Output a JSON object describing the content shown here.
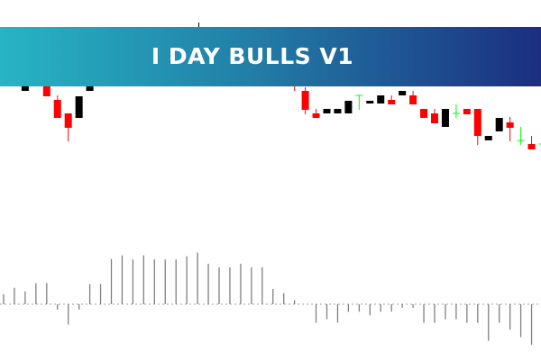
{
  "banner": {
    "title": "I DAY BULLS V1"
  },
  "colors": {
    "bull": "#000000",
    "bear": "#ff0000",
    "doji": "#00ff00",
    "histogram": "#808080",
    "zero_line": "#a0a0a0",
    "banner_start": "#27b4c4",
    "banner_end": "#1c2e80"
  },
  "chart_data": [
    {
      "type": "candlestick",
      "title": "",
      "candles": [
        {
          "i": 2,
          "o": 99,
          "h": 108,
          "l": 99,
          "c": 107
        },
        {
          "i": 4,
          "o": 110,
          "h": 112,
          "l": 93,
          "c": 93
        },
        {
          "i": 5,
          "o": 89,
          "h": 94,
          "l": 69,
          "c": 69
        },
        {
          "i": 6,
          "o": 74,
          "h": 74,
          "l": 43,
          "c": 58
        },
        {
          "i": 7,
          "o": 69,
          "h": 93,
          "l": 69,
          "c": 93
        },
        {
          "i": 8,
          "o": 99,
          "h": 108,
          "l": 99,
          "c": 106
        },
        {
          "i": 27,
          "o": 108,
          "h": 110,
          "l": 99,
          "c": 104
        },
        {
          "i": 28,
          "o": 99,
          "h": 103,
          "l": 73,
          "c": 78
        },
        {
          "i": 29,
          "o": 74,
          "h": 79,
          "l": 69,
          "c": 69
        },
        {
          "i": 30,
          "o": 74,
          "h": 79,
          "l": 74,
          "c": 79
        },
        {
          "i": 31,
          "o": 74,
          "h": 79,
          "l": 74,
          "c": 79
        },
        {
          "i": 32,
          "o": 74,
          "h": 88,
          "l": 74,
          "c": 88
        },
        {
          "i": 33,
          "o": 94,
          "h": 94,
          "l": 78,
          "c": 94
        },
        {
          "i": 34,
          "o": 85,
          "h": 88,
          "l": 85,
          "c": 88
        },
        {
          "i": 35,
          "o": 85,
          "h": 94,
          "l": 85,
          "c": 94
        },
        {
          "i": 36,
          "o": 89,
          "h": 94,
          "l": 84,
          "c": 84
        },
        {
          "i": 37,
          "o": 94,
          "h": 99,
          "l": 94,
          "c": 99
        },
        {
          "i": 38,
          "o": 94,
          "h": 99,
          "l": 84,
          "c": 84
        },
        {
          "i": 39,
          "o": 79,
          "h": 79,
          "l": 69,
          "c": 69
        },
        {
          "i": 40,
          "o": 74,
          "h": 79,
          "l": 63,
          "c": 63
        },
        {
          "i": 41,
          "o": 59,
          "h": 79,
          "l": 59,
          "c": 79
        },
        {
          "i": 42,
          "o": 74,
          "h": 84,
          "l": 69,
          "c": 74
        },
        {
          "i": 43,
          "o": 79,
          "h": 79,
          "l": 73,
          "c": 73
        },
        {
          "i": 44,
          "o": 79,
          "h": 79,
          "l": 39,
          "c": 49
        },
        {
          "i": 45,
          "o": 44,
          "h": 49,
          "l": 44,
          "c": 49
        },
        {
          "i": 46,
          "o": 54,
          "h": 69,
          "l": 54,
          "c": 69
        },
        {
          "i": 47,
          "o": 64,
          "h": 70,
          "l": 43,
          "c": 58
        },
        {
          "i": 48,
          "o": 44,
          "h": 59,
          "l": 39,
          "c": 44
        },
        {
          "i": 49,
          "o": 40,
          "h": 49,
          "l": 34,
          "c": 34
        },
        {
          "i": 50,
          "o": 40,
          "h": 40,
          "l": 40,
          "c": 40
        }
      ]
    },
    {
      "type": "bar",
      "title": "",
      "baseline": 0,
      "values": [
        3.3,
        5.5,
        4.3,
        7.0,
        7.0,
        -1.8,
        -6.8,
        -1.8,
        6.7,
        6.7,
        15.1,
        16.3,
        14.9,
        16.3,
        14.9,
        14.9,
        14.9,
        16.0,
        17.2,
        13.5,
        12.3,
        12.3,
        13.5,
        12.3,
        12.3,
        5.1,
        3.7,
        1.3,
        0,
        -6.2,
        -5.0,
        -6.2,
        -2.5,
        -2.5,
        -3.7,
        -2.5,
        -2.5,
        -1.2,
        -1.2,
        -6.2,
        -6.2,
        -5.0,
        -5.0,
        -6.2,
        -6.2,
        -12.2,
        -6.2,
        -8.5,
        -11.0,
        -13.5
      ]
    }
  ]
}
